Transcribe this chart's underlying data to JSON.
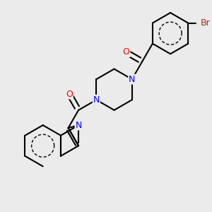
{
  "bg": "#EBEBEB",
  "bond_color": "#000000",
  "bw": 1.5,
  "atom_colors": {
    "N": "#0000FF",
    "O": "#FF0000",
    "Br": "#A52A00",
    "C": "#000000"
  },
  "fs": 9.0
}
